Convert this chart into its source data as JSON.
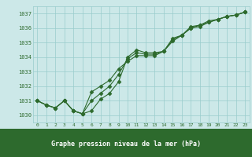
{
  "x": [
    0,
    1,
    2,
    3,
    4,
    5,
    6,
    7,
    8,
    9,
    10,
    11,
    12,
    13,
    14,
    15,
    16,
    17,
    18,
    19,
    20,
    21,
    22,
    23
  ],
  "line1": [
    1031.0,
    1030.7,
    1030.5,
    1031.0,
    1030.3,
    1030.1,
    1030.3,
    1031.1,
    1031.5,
    1032.3,
    1034.0,
    1034.5,
    1034.3,
    1034.3,
    1034.4,
    1035.3,
    1035.5,
    1036.1,
    1036.2,
    1036.5,
    1036.6,
    1036.8,
    1036.9,
    1037.1
  ],
  "line2": [
    1031.0,
    1030.7,
    1030.5,
    1031.0,
    1030.3,
    1030.1,
    1031.0,
    1031.5,
    1032.0,
    1032.8,
    1033.9,
    1034.3,
    1034.2,
    1034.2,
    1034.4,
    1035.2,
    1035.5,
    1036.0,
    1036.2,
    1036.4,
    1036.6,
    1036.8,
    1036.9,
    1037.1
  ],
  "line3": [
    1031.0,
    1030.7,
    1030.5,
    1031.0,
    1030.3,
    1030.1,
    1031.6,
    1032.0,
    1032.4,
    1033.2,
    1033.7,
    1034.1,
    1034.1,
    1034.1,
    1034.4,
    1035.1,
    1035.5,
    1036.0,
    1036.1,
    1036.4,
    1036.6,
    1036.8,
    1036.9,
    1037.1
  ],
  "ylim": [
    1029.5,
    1037.5
  ],
  "yticks": [
    1030,
    1031,
    1032,
    1033,
    1034,
    1035,
    1036,
    1037
  ],
  "xticks": [
    0,
    1,
    2,
    3,
    4,
    5,
    6,
    7,
    8,
    9,
    10,
    11,
    12,
    13,
    14,
    15,
    16,
    17,
    18,
    19,
    20,
    21,
    22,
    23
  ],
  "line_color": "#2d6a2d",
  "bg_color": "#cce8e8",
  "grid_color": "#99cccc",
  "xlabel": "Graphe pression niveau de la mer (hPa)",
  "text_color": "#2d6a2d"
}
